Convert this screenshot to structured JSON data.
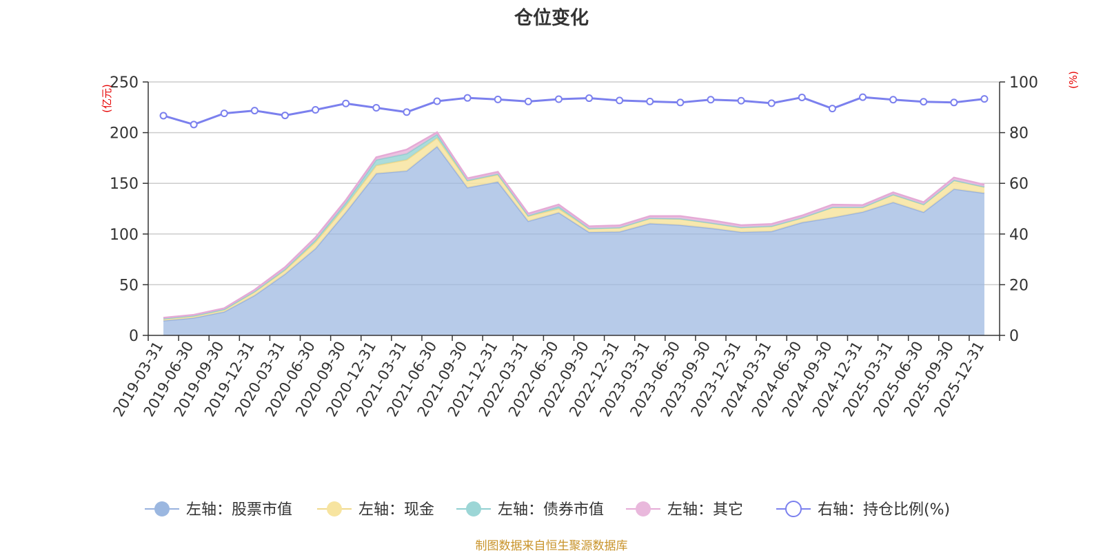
{
  "chart_data": {
    "type": "area",
    "title": "仓位变化",
    "left_unit": "(亿元)",
    "right_unit": "(%)",
    "x": [
      "2019-03-31",
      "2019-06-30",
      "2019-09-30",
      "2019-12-31",
      "2020-03-31",
      "2020-06-30",
      "2020-09-30",
      "2020-12-31",
      "2021-03-31",
      "2021-06-30",
      "2021-09-30",
      "2021-12-31",
      "2022-03-31",
      "2022-06-30",
      "2022-09-30",
      "2022-12-31",
      "2023-03-31",
      "2023-06-30",
      "2023-09-30",
      "2023-12-31",
      "2024-03-31",
      "2024-06-30",
      "2024-09-30",
      "2024-12-31",
      "2025-03-31",
      "2025-06-30",
      "2025-09-30",
      "2025-12-31"
    ],
    "ylim_left": [
      0,
      250
    ],
    "yticks_left": [
      0,
      50,
      100,
      150,
      200,
      250
    ],
    "ylim_right": [
      0,
      100
    ],
    "yticks_right": [
      0,
      20,
      40,
      60,
      80,
      100
    ],
    "grid": true,
    "legend_position": "bottom",
    "series": [
      {
        "name": "左轴：股票市值",
        "axis": "left",
        "stack": true,
        "color": "#9bb7e0",
        "values": [
          14.5,
          17.3,
          23.3,
          39.5,
          60.5,
          85.7,
          121.5,
          159.7,
          162.3,
          186.4,
          145.8,
          151.5,
          112.7,
          121.1,
          101.8,
          102.2,
          110.4,
          108.9,
          105.8,
          101.9,
          102.6,
          111.4,
          116.2,
          121.8,
          131.3,
          121.6,
          144.4,
          140.4
        ]
      },
      {
        "name": "左轴：现金",
        "axis": "left",
        "stack": true,
        "color": "#f7e4a0",
        "values": [
          1.8,
          1.9,
          2.2,
          3.5,
          4.0,
          6.5,
          6.5,
          8.0,
          11.0,
          8.5,
          6.7,
          7.0,
          5.0,
          4.0,
          3.5,
          4.0,
          5.0,
          6.0,
          5.0,
          4.5,
          5.0,
          4.5,
          10.0,
          4.5,
          7.5,
          7.5,
          8.5,
          6.0
        ]
      },
      {
        "name": "左轴：债券市值",
        "axis": "left",
        "stack": true,
        "color": "#9cd6d6",
        "values": [
          0.3,
          0.3,
          0.3,
          0.5,
          0.8,
          2.0,
          3.0,
          5.5,
          6.0,
          3.5,
          0.5,
          0.8,
          0.5,
          2.0,
          0.3,
          0.3,
          0.3,
          0.3,
          0.3,
          0.3,
          0.3,
          0.3,
          0.3,
          0.3,
          0.3,
          0.3,
          0.3,
          0.3
        ]
      },
      {
        "name": "左轴：其它",
        "axis": "left",
        "stack": true,
        "color": "#e9b8dc",
        "values": [
          0.8,
          0.8,
          1.0,
          1.5,
          2.0,
          2.5,
          2.5,
          2.5,
          4.0,
          2.0,
          2.0,
          2.0,
          2.0,
          2.0,
          2.0,
          2.0,
          2.0,
          2.5,
          2.5,
          2.0,
          2.0,
          2.0,
          2.5,
          2.0,
          2.0,
          2.0,
          2.5,
          2.0
        ]
      },
      {
        "name": "右轴：持仓比例(%)",
        "axis": "right",
        "type": "line",
        "color": "#7b80ee",
        "values": [
          86.7,
          83.2,
          87.6,
          88.7,
          86.8,
          89.0,
          91.5,
          89.8,
          88.1,
          92.4,
          93.7,
          93.1,
          92.3,
          93.2,
          93.6,
          92.7,
          92.3,
          91.9,
          93.0,
          92.6,
          91.6,
          93.9,
          89.5,
          94.0,
          93.0,
          92.2,
          91.9,
          93.3
        ]
      }
    ],
    "colors": {
      "stock": "#9bb7e0",
      "stock_line": "#97b1de",
      "cash": "#f7e4a0",
      "cash_line": "#f0d98b",
      "bond": "#9cd6d6",
      "bond_line": "#8fcfd0",
      "other": "#e9b8dc",
      "other_line": "#e5aad6",
      "ratio": "#7b80ee",
      "unit_label": "#e60000",
      "source": "#c8932a"
    }
  },
  "source": "制图数据来自恒生聚源数据库"
}
